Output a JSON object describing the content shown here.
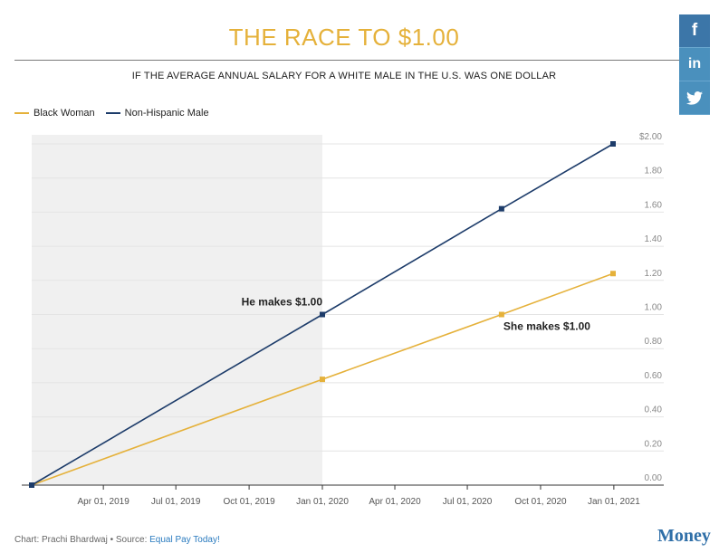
{
  "social": {
    "facebook": "f",
    "linkedin": "in",
    "twitter_icon": "twitter-icon"
  },
  "footer": {
    "credit": "Chart: Prachi Bhardwaj • Source: ",
    "source": "Equal Pay Today!",
    "brand": "Money"
  },
  "chart_data": {
    "type": "line",
    "title": "THE RACE TO $1.00",
    "subtitle": "IF THE AVERAGE ANNUAL SALARY FOR A WHITE MALE IN THE U.S. WAS ONE DOLLAR",
    "x_domain_days": [
      0,
      730
    ],
    "x_ticks": [
      {
        "day": 90,
        "label": "Apr 01, 2019"
      },
      {
        "day": 181,
        "label": "Jul 01, 2019"
      },
      {
        "day": 273,
        "label": "Oct 01, 2019"
      },
      {
        "day": 365,
        "label": "Jan 01, 2020"
      },
      {
        "day": 456,
        "label": "Apr 01, 2020"
      },
      {
        "day": 547,
        "label": "Jul 01, 2020"
      },
      {
        "day": 639,
        "label": "Oct 01, 2020"
      },
      {
        "day": 731,
        "label": "Jan 01, 2021"
      }
    ],
    "ylim": [
      0,
      2.0
    ],
    "y_ticks": [
      {
        "value": 0,
        "label": "0.00"
      },
      {
        "value": 0.2,
        "label": "0.20"
      },
      {
        "value": 0.4,
        "label": "0.40"
      },
      {
        "value": 0.6,
        "label": "0.60"
      },
      {
        "value": 0.8,
        "label": "0.80"
      },
      {
        "value": 1.0,
        "label": "1.00"
      },
      {
        "value": 1.2,
        "label": "1.20"
      },
      {
        "value": 1.4,
        "label": "1.40"
      },
      {
        "value": 1.6,
        "label": "1.60"
      },
      {
        "value": 1.8,
        "label": "1.80"
      },
      {
        "value": 2.0,
        "label": "$2.00"
      }
    ],
    "shaded_region_days": [
      0,
      365
    ],
    "series": [
      {
        "name": "Black Woman",
        "color": "#e5b13a",
        "points": [
          {
            "day": 0,
            "value": 0.0
          },
          {
            "day": 365,
            "value": 0.62
          },
          {
            "day": 590,
            "value": 1.0
          },
          {
            "day": 730,
            "value": 1.24
          }
        ]
      },
      {
        "name": "Non-Hispanic Male",
        "color": "#1d3c6a",
        "points": [
          {
            "day": 0,
            "value": 0.0
          },
          {
            "day": 365,
            "value": 1.0
          },
          {
            "day": 590,
            "value": 1.62
          },
          {
            "day": 730,
            "value": 2.0
          }
        ]
      }
    ],
    "annotations": [
      {
        "text": "He makes $1.00",
        "series": 1,
        "point": 1,
        "placement": "above-left"
      },
      {
        "text": "She makes $1.00",
        "series": 0,
        "point": 2,
        "placement": "below-right"
      }
    ]
  }
}
